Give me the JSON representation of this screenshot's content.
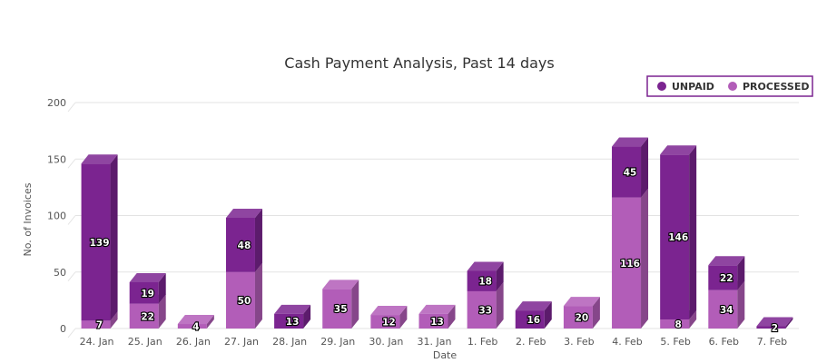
{
  "chart_data": {
    "type": "bar",
    "stacked": true,
    "style": "3d-column",
    "title": "Cash Payment Analysis, Past 14 days",
    "xlabel": "Date",
    "ylabel": "No. of Invoices",
    "ylim": [
      0,
      200
    ],
    "yticks": [
      0,
      50,
      100,
      150,
      200
    ],
    "grid": true,
    "legend_position": "top-right",
    "categories": [
      "24. Jan",
      "25. Jan",
      "26. Jan",
      "27. Jan",
      "28. Jan",
      "29. Jan",
      "30. Jan",
      "31. Jan",
      "1. Feb",
      "2. Feb",
      "3. Feb",
      "4. Feb",
      "5. Feb",
      "6. Feb",
      "7. Feb"
    ],
    "series": [
      {
        "name": "UNPAID",
        "color": "#7b2490",
        "values": [
          139,
          19,
          0,
          48,
          13,
          0,
          0,
          0,
          18,
          16,
          0,
          45,
          146,
          22,
          2
        ]
      },
      {
        "name": "PROCESSED",
        "color": "#b25db8",
        "values": [
          7,
          22,
          4,
          50,
          0,
          35,
          12,
          13,
          33,
          0,
          20,
          116,
          8,
          34,
          0
        ]
      }
    ]
  }
}
